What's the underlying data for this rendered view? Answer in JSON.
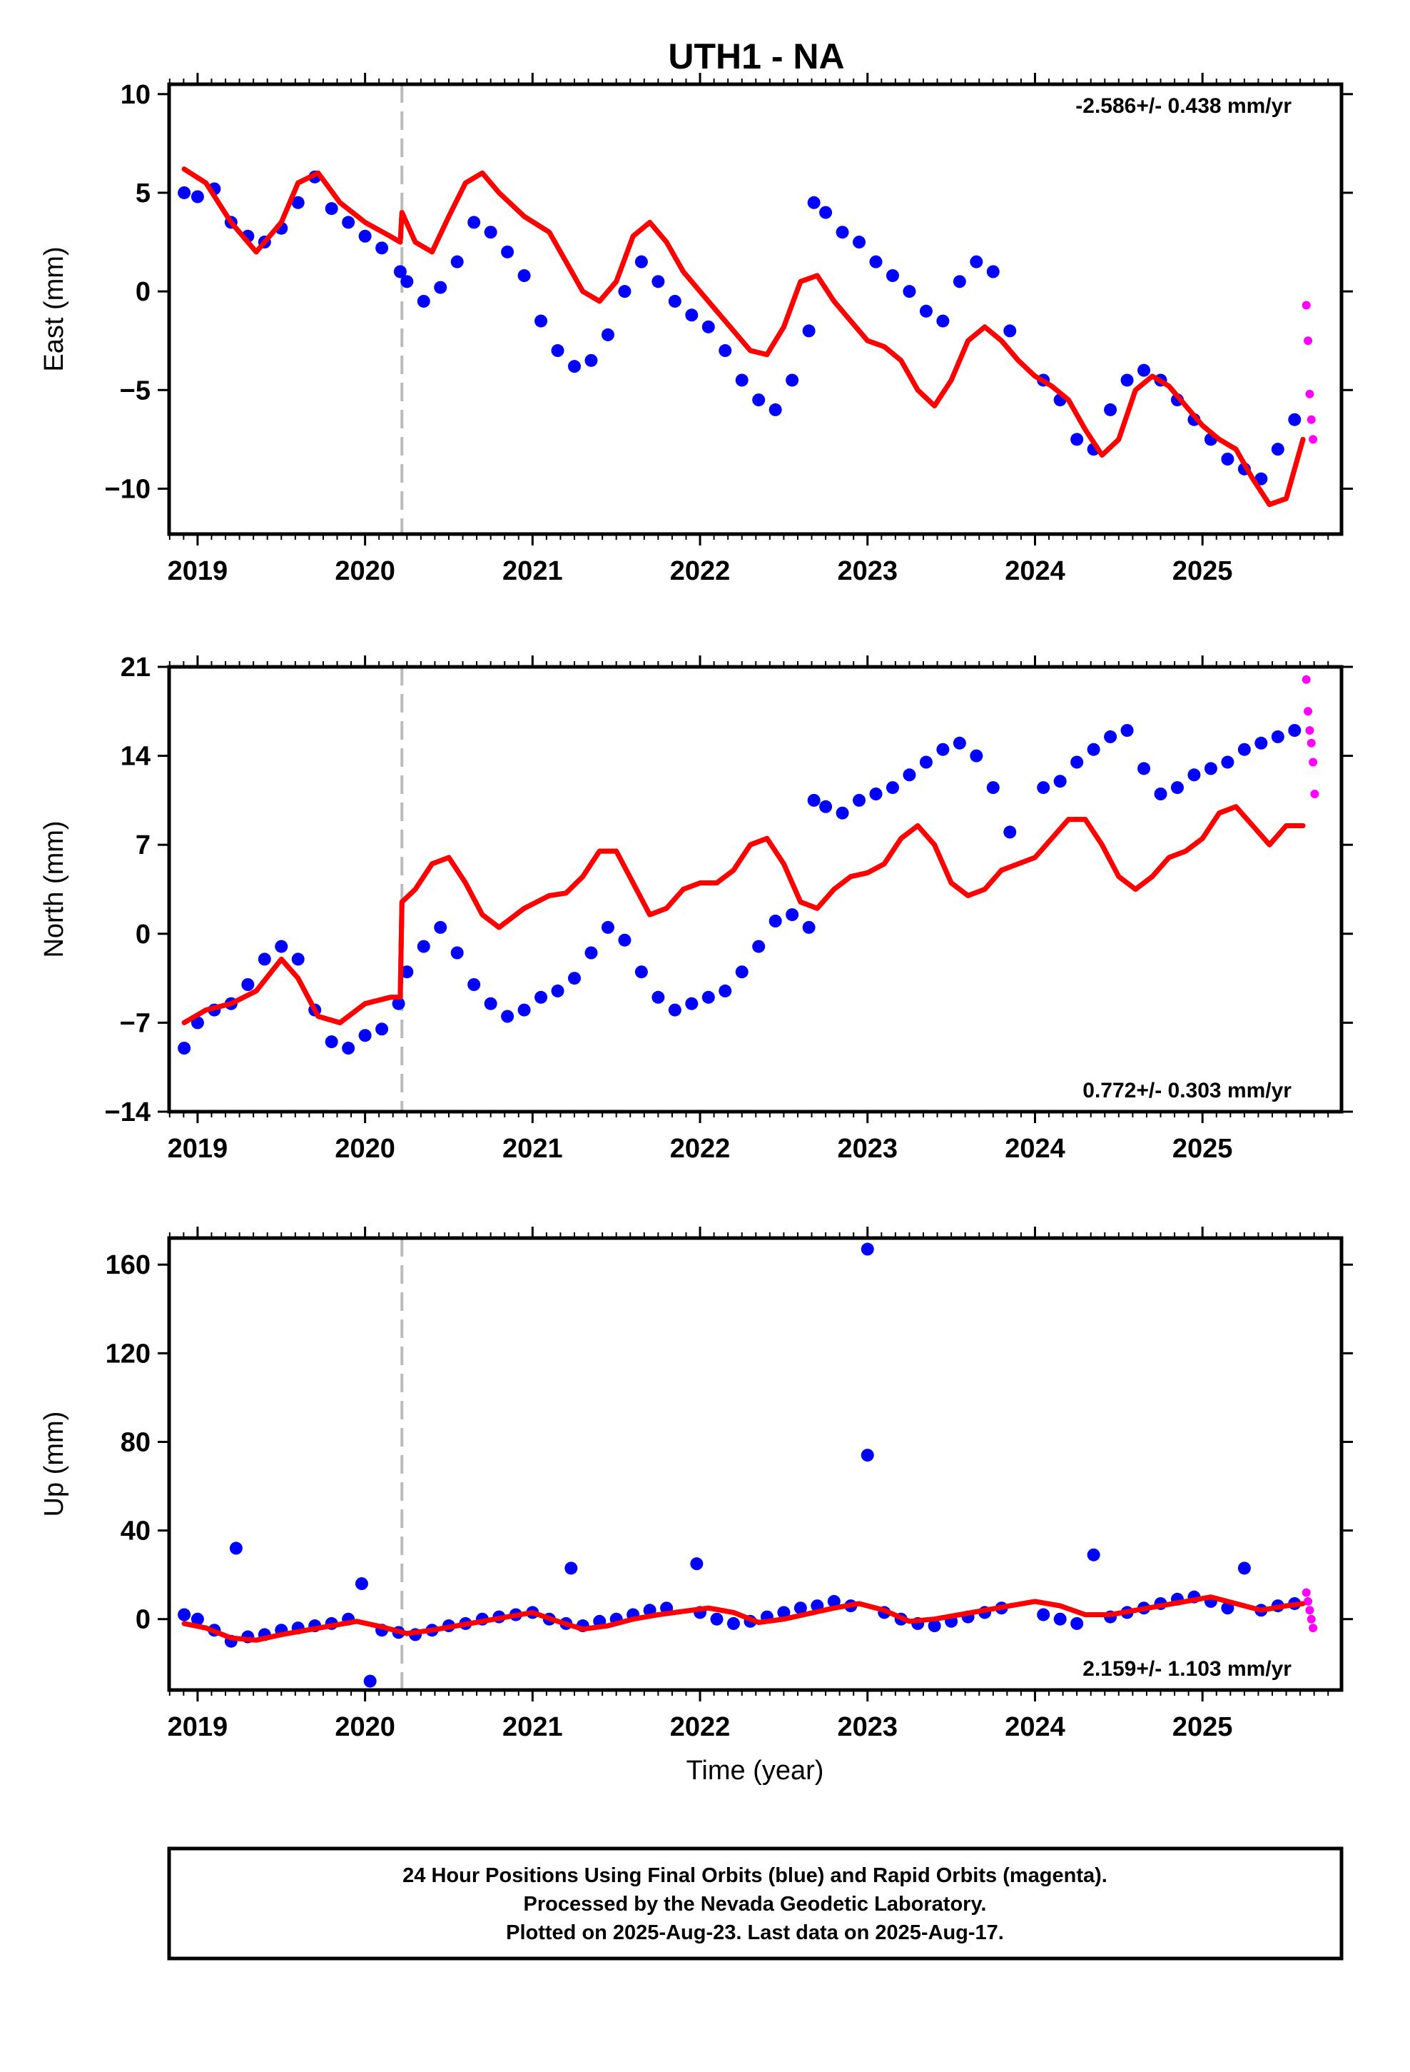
{
  "chart_data": {
    "title": "UTH1 - NA",
    "xlabel": "Time (year)",
    "x_ticks": [
      2019,
      2020,
      2021,
      2022,
      2023,
      2024,
      2025
    ],
    "xlim": [
      2018.83,
      2025.83
    ],
    "event_line_x": 2020.22,
    "colors": {
      "final_orbits": "#0000ff",
      "rapid_orbits": "#ff00ff",
      "model_fit": "#ff0000",
      "event_line": "#bbbbbb",
      "frame": "#000000"
    },
    "panels": [
      {
        "type": "scatter",
        "ylabel": "East (mm)",
        "ylim": [
          -12.3,
          10.5
        ],
        "y_ticks": [
          10,
          5,
          0,
          -5,
          -10
        ],
        "y_tick_labels": [
          "10",
          "5",
          "0",
          "−5",
          "−10"
        ],
        "rate": "-2.586+/- 0.438 mm/yr",
        "rate_position": "top-right",
        "series": [
          {
            "kind": "final_orbits",
            "x": [
              2018.92,
              2019.0,
              2019.1,
              2019.2,
              2019.3,
              2019.4,
              2019.5,
              2019.6,
              2019.7,
              2019.8,
              2019.9,
              2020.0,
              2020.1,
              2020.21,
              2020.25,
              2020.35,
              2020.45,
              2020.55,
              2020.65,
              2020.75,
              2020.85,
              2020.95,
              2021.05,
              2021.15,
              2021.25,
              2021.35,
              2021.45,
              2021.55,
              2021.65,
              2021.75,
              2021.85,
              2021.95,
              2022.05,
              2022.15,
              2022.25,
              2022.35,
              2022.45,
              2022.55,
              2022.65,
              2022.68,
              2022.75,
              2022.85,
              2022.95,
              2023.05,
              2023.15,
              2023.25,
              2023.35,
              2023.45,
              2023.55,
              2023.65,
              2023.75,
              2023.85,
              2024.05,
              2024.15,
              2024.25,
              2024.35,
              2024.45,
              2024.55,
              2024.65,
              2024.75,
              2024.85,
              2024.95,
              2025.05,
              2025.15,
              2025.25,
              2025.35,
              2025.45,
              2025.55
            ],
            "y": [
              5.0,
              4.8,
              5.2,
              3.5,
              2.8,
              2.5,
              3.2,
              4.5,
              5.8,
              4.2,
              3.5,
              2.8,
              2.2,
              1.0,
              0.5,
              -0.5,
              0.2,
              1.5,
              3.5,
              3.0,
              2.0,
              0.8,
              -1.5,
              -3.0,
              -3.8,
              -3.5,
              -2.2,
              0.0,
              1.5,
              0.5,
              -0.5,
              -1.2,
              -1.8,
              -3.0,
              -4.5,
              -5.5,
              -6.0,
              -4.5,
              -2.0,
              4.5,
              4.0,
              3.0,
              2.5,
              1.5,
              0.8,
              0.0,
              -1.0,
              -1.5,
              0.5,
              1.5,
              1.0,
              -2.0,
              -4.5,
              -5.5,
              -7.5,
              -8.0,
              -6.0,
              -4.5,
              -4.0,
              -4.5,
              -5.5,
              -6.5,
              -7.5,
              -8.5,
              -9.0,
              -9.5,
              -8.0,
              -6.5
            ]
          },
          {
            "kind": "rapid_orbits",
            "x": [
              2025.62,
              2025.63,
              2025.64,
              2025.65,
              2025.66
            ],
            "y": [
              -0.7,
              -2.5,
              -5.2,
              -6.5,
              -7.5
            ]
          },
          {
            "kind": "model_fit",
            "x": [
              2018.92,
              2019.05,
              2019.2,
              2019.35,
              2019.5,
              2019.6,
              2019.72,
              2019.85,
              2020.0,
              2020.15,
              2020.21,
              2020.22,
              2020.3,
              2020.4,
              2020.5,
              2020.6,
              2020.7,
              2020.8,
              2020.95,
              2021.1,
              2021.2,
              2021.3,
              2021.4,
              2021.5,
              2021.6,
              2021.7,
              2021.8,
              2021.9,
              2022.0,
              2022.1,
              2022.2,
              2022.3,
              2022.4,
              2022.5,
              2022.6,
              2022.7,
              2022.8,
              2022.9,
              2023.0,
              2023.1,
              2023.2,
              2023.3,
              2023.4,
              2023.5,
              2023.6,
              2023.7,
              2023.8,
              2023.9,
              2024.0,
              2024.1,
              2024.2,
              2024.3,
              2024.4,
              2024.5,
              2024.6,
              2024.7,
              2024.8,
              2024.9,
              2025.0,
              2025.1,
              2025.2,
              2025.3,
              2025.4,
              2025.5,
              2025.6
            ],
            "y": [
              6.2,
              5.5,
              3.5,
              2.0,
              3.5,
              5.5,
              6.0,
              4.5,
              3.5,
              2.8,
              2.5,
              4.0,
              2.5,
              2.0,
              3.8,
              5.5,
              6.0,
              5.0,
              3.8,
              3.0,
              1.5,
              0.0,
              -0.5,
              0.5,
              2.8,
              3.5,
              2.5,
              1.0,
              0.0,
              -1.0,
              -2.0,
              -3.0,
              -3.2,
              -1.8,
              0.5,
              0.8,
              -0.5,
              -1.5,
              -2.5,
              -2.8,
              -3.5,
              -5.0,
              -5.8,
              -4.5,
              -2.5,
              -1.8,
              -2.5,
              -3.5,
              -4.3,
              -4.8,
              -5.5,
              -7.0,
              -8.3,
              -7.5,
              -5.0,
              -4.3,
              -4.8,
              -5.8,
              -6.8,
              -7.5,
              -8.0,
              -9.5,
              -10.8,
              -10.5,
              -7.5
            ]
          }
        ]
      },
      {
        "type": "scatter",
        "ylabel": "North (mm)",
        "ylim": [
          -14,
          21
        ],
        "y_ticks": [
          21,
          14,
          7,
          0,
          -7,
          -14
        ],
        "y_tick_labels": [
          "21",
          "14",
          "7",
          "0",
          "−7",
          "−14"
        ],
        "rate": "0.772+/- 0.303 mm/yr",
        "rate_position": "bottom-right",
        "series": [
          {
            "kind": "final_orbits",
            "x": [
              2018.92,
              2019.0,
              2019.1,
              2019.2,
              2019.3,
              2019.4,
              2019.5,
              2019.6,
              2019.7,
              2019.8,
              2019.9,
              2020.0,
              2020.1,
              2020.2,
              2020.25,
              2020.35,
              2020.45,
              2020.55,
              2020.65,
              2020.75,
              2020.85,
              2020.95,
              2021.05,
              2021.15,
              2021.25,
              2021.35,
              2021.45,
              2021.55,
              2021.65,
              2021.75,
              2021.85,
              2021.95,
              2022.05,
              2022.15,
              2022.25,
              2022.35,
              2022.45,
              2022.55,
              2022.65,
              2022.68,
              2022.75,
              2022.85,
              2022.95,
              2023.05,
              2023.15,
              2023.25,
              2023.35,
              2023.45,
              2023.55,
              2023.65,
              2023.75,
              2023.85,
              2024.05,
              2024.15,
              2024.25,
              2024.35,
              2024.45,
              2024.55,
              2024.65,
              2024.75,
              2024.85,
              2024.95,
              2025.05,
              2025.15,
              2025.25,
              2025.35,
              2025.45,
              2025.55
            ],
            "y": [
              -9.0,
              -7.0,
              -6.0,
              -5.5,
              -4.0,
              -2.0,
              -1.0,
              -2.0,
              -6.0,
              -8.5,
              -9.0,
              -8.0,
              -7.5,
              -5.5,
              -3.0,
              -1.0,
              0.5,
              -1.5,
              -4.0,
              -5.5,
              -6.5,
              -6.0,
              -5.0,
              -4.5,
              -3.5,
              -1.5,
              0.5,
              -0.5,
              -3.0,
              -5.0,
              -6.0,
              -5.5,
              -5.0,
              -4.5,
              -3.0,
              -1.0,
              1.0,
              1.5,
              0.5,
              10.5,
              10.0,
              9.5,
              10.5,
              11.0,
              11.5,
              12.5,
              13.5,
              14.5,
              15.0,
              14.0,
              11.5,
              8.0,
              11.5,
              12.0,
              13.5,
              14.5,
              15.5,
              16.0,
              13.0,
              11.0,
              11.5,
              12.5,
              13.0,
              13.5,
              14.5,
              15.0,
              15.5,
              16.0
            ]
          },
          {
            "kind": "rapid_orbits",
            "x": [
              2025.62,
              2025.63,
              2025.64,
              2025.65,
              2025.66,
              2025.67
            ],
            "y": [
              20.0,
              17.5,
              16.0,
              15.0,
              13.5,
              11.0
            ]
          },
          {
            "kind": "model_fit",
            "x": [
              2018.92,
              2019.05,
              2019.2,
              2019.35,
              2019.5,
              2019.6,
              2019.72,
              2019.85,
              2020.0,
              2020.15,
              2020.21,
              2020.22,
              2020.3,
              2020.4,
              2020.5,
              2020.6,
              2020.7,
              2020.8,
              2020.95,
              2021.1,
              2021.2,
              2021.3,
              2021.4,
              2021.5,
              2021.6,
              2021.7,
              2021.8,
              2021.9,
              2022.0,
              2022.1,
              2022.2,
              2022.3,
              2022.4,
              2022.5,
              2022.6,
              2022.7,
              2022.8,
              2022.9,
              2023.0,
              2023.1,
              2023.2,
              2023.3,
              2023.4,
              2023.5,
              2023.6,
              2023.7,
              2023.8,
              2023.9,
              2024.0,
              2024.1,
              2024.2,
              2024.3,
              2024.4,
              2024.5,
              2024.6,
              2024.7,
              2024.8,
              2024.9,
              2025.0,
              2025.1,
              2025.2,
              2025.3,
              2025.4,
              2025.5,
              2025.6
            ],
            "y": [
              -7.0,
              -6.0,
              -5.5,
              -4.5,
              -2.0,
              -3.5,
              -6.5,
              -7.0,
              -5.5,
              -5.0,
              -5.0,
              2.5,
              3.5,
              5.5,
              6.0,
              4.0,
              1.5,
              0.5,
              2.0,
              3.0,
              3.2,
              4.5,
              6.5,
              6.5,
              4.0,
              1.5,
              2.0,
              3.5,
              4.0,
              4.0,
              5.0,
              7.0,
              7.5,
              5.5,
              2.5,
              2.0,
              3.5,
              4.5,
              4.8,
              5.5,
              7.5,
              8.5,
              7.0,
              4.0,
              3.0,
              3.5,
              5.0,
              5.5,
              6.0,
              7.5,
              9.0,
              9.0,
              7.0,
              4.5,
              3.5,
              4.5,
              6.0,
              6.5,
              7.5,
              9.5,
              10.0,
              8.5,
              7.0,
              8.5,
              8.5
            ]
          }
        ]
      },
      {
        "type": "scatter",
        "ylabel": "Up (mm)",
        "ylim": [
          -32,
          172
        ],
        "y_ticks": [
          160,
          120,
          80,
          40,
          0
        ],
        "y_tick_labels": [
          "160",
          "120",
          "80",
          "40",
          "0"
        ],
        "rate": "2.159+/- 1.103 mm/yr",
        "rate_position": "bottom-right",
        "series": [
          {
            "kind": "final_orbits",
            "x": [
              2018.92,
              2019.0,
              2019.1,
              2019.2,
              2019.23,
              2019.3,
              2019.4,
              2019.5,
              2019.6,
              2019.7,
              2019.8,
              2019.9,
              2019.98,
              2020.03,
              2020.1,
              2020.2,
              2020.3,
              2020.4,
              2020.5,
              2020.6,
              2020.7,
              2020.8,
              2020.9,
              2021.0,
              2021.1,
              2021.2,
              2021.23,
              2021.3,
              2021.4,
              2021.5,
              2021.6,
              2021.7,
              2021.8,
              2021.98,
              2022.0,
              2022.1,
              2022.2,
              2022.3,
              2022.4,
              2022.5,
              2022.6,
              2022.7,
              2022.8,
              2022.9,
              2023.0,
              2023.0,
              2023.1,
              2023.2,
              2023.3,
              2023.4,
              2023.5,
              2023.6,
              2023.7,
              2023.8,
              2024.05,
              2024.15,
              2024.25,
              2024.35,
              2024.45,
              2024.55,
              2024.65,
              2024.75,
              2024.85,
              2024.95,
              2025.05,
              2025.15,
              2025.25,
              2025.35,
              2025.45,
              2025.55
            ],
            "y": [
              2.0,
              0.0,
              -5.0,
              -10.0,
              32.0,
              -8.0,
              -7.0,
              -5.0,
              -4.0,
              -3.0,
              -2.0,
              0.0,
              16.0,
              -28.0,
              -5.0,
              -6.0,
              -7.0,
              -5.0,
              -3.0,
              -2.0,
              0.0,
              1.0,
              2.0,
              3.0,
              0.0,
              -2.0,
              23.0,
              -3.0,
              -1.0,
              0.0,
              2.0,
              4.0,
              5.0,
              25.0,
              3.0,
              0.0,
              -2.0,
              -1.0,
              1.0,
              3.0,
              5.0,
              6.0,
              8.0,
              6.0,
              74.0,
              167.0,
              3.0,
              0.0,
              -2.0,
              -3.0,
              -1.0,
              1.0,
              3.0,
              5.0,
              2.0,
              0.0,
              -2.0,
              29.0,
              1.0,
              3.0,
              5.0,
              7.0,
              9.0,
              10.0,
              8.0,
              5.0,
              23.0,
              4.0,
              6.0,
              7.0
            ]
          },
          {
            "kind": "rapid_orbits",
            "x": [
              2025.62,
              2025.63,
              2025.64,
              2025.65,
              2025.66
            ],
            "y": [
              12.0,
              8.0,
              4.0,
              0.0,
              -4.0
            ]
          },
          {
            "kind": "model_fit",
            "x": [
              2018.92,
              2019.05,
              2019.2,
              2019.35,
              2019.5,
              2019.65,
              2019.8,
              2019.95,
              2020.1,
              2020.25,
              2020.4,
              2020.55,
              2020.7,
              2020.85,
              2021.0,
              2021.15,
              2021.3,
              2021.45,
              2021.6,
              2021.75,
              2021.9,
              2022.05,
              2022.2,
              2022.35,
              2022.5,
              2022.65,
              2022.8,
              2022.95,
              2023.1,
              2023.25,
              2023.4,
              2023.55,
              2023.7,
              2023.85,
              2024.0,
              2024.15,
              2024.3,
              2024.45,
              2024.6,
              2024.75,
              2024.9,
              2025.05,
              2025.2,
              2025.35,
              2025.5,
              2025.6
            ],
            "y": [
              -2.0,
              -4.0,
              -8.5,
              -9.5,
              -7.0,
              -5.0,
              -3.0,
              -1.0,
              -3.5,
              -6.5,
              -5.0,
              -3.0,
              -1.0,
              1.0,
              3.0,
              -1.0,
              -4.5,
              -3.0,
              0.0,
              2.0,
              3.5,
              5.0,
              3.0,
              -1.5,
              0.0,
              2.5,
              5.0,
              7.0,
              4.0,
              -1.0,
              0.0,
              2.0,
              4.0,
              6.0,
              8.0,
              6.0,
              2.0,
              2.0,
              4.0,
              6.0,
              8.0,
              10.0,
              7.0,
              4.0,
              6.0,
              7.0
            ]
          }
        ]
      }
    ],
    "footer": [
      "24 Hour Positions Using Final Orbits (blue) and Rapid Orbits (magenta).",
      "Processed by the Nevada Geodetic Laboratory.",
      "Plotted on 2025-Aug-23. Last data on 2025-Aug-17."
    ]
  }
}
